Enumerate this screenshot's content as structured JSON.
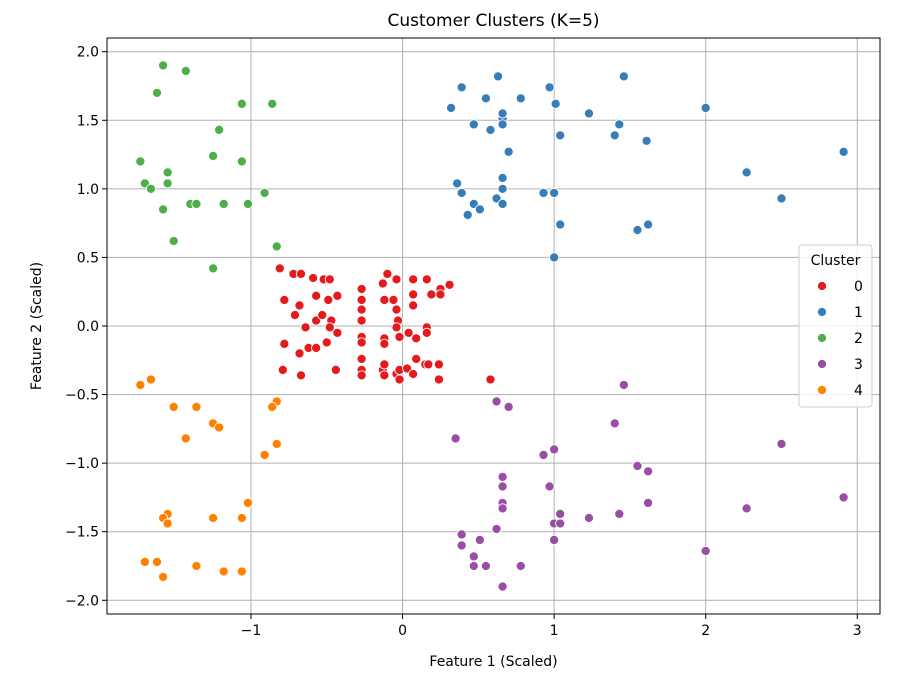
{
  "chart_data": {
    "type": "scatter",
    "title": "Customer Clusters (K=5)",
    "xlabel": "Feature 1 (Scaled)",
    "ylabel": "Feature 2 (Scaled)",
    "xlim": [
      -1.95,
      3.15
    ],
    "ylim": [
      -2.1,
      2.1
    ],
    "xticks": [
      -1,
      0,
      1,
      2,
      3
    ],
    "xtick_labels": [
      "−1",
      "0",
      "1",
      "2",
      "3"
    ],
    "yticks": [
      -2.0,
      -1.5,
      -1.0,
      -0.5,
      0.0,
      0.5,
      1.0,
      1.5,
      2.0
    ],
    "ytick_labels": [
      "−2.0",
      "−1.5",
      "−1.0",
      "−0.5",
      "0.0",
      "0.5",
      "1.0",
      "1.5",
      "2.0"
    ],
    "grid": true,
    "legend": {
      "title": "Cluster",
      "placement": "center-right"
    },
    "series": [
      {
        "name": "0",
        "color": "#e41a1c",
        "points": [
          [
            -0.81,
            0.42
          ],
          [
            -0.72,
            0.38
          ],
          [
            -0.67,
            0.38
          ],
          [
            -0.59,
            0.35
          ],
          [
            -0.52,
            0.34
          ],
          [
            -0.48,
            0.34
          ],
          [
            -0.78,
            0.19
          ],
          [
            -0.68,
            0.15
          ],
          [
            -0.57,
            0.22
          ],
          [
            -0.49,
            0.19
          ],
          [
            -0.43,
            0.22
          ],
          [
            -0.27,
            0.27
          ],
          [
            -0.27,
            0.19
          ],
          [
            -0.13,
            0.31
          ],
          [
            -0.1,
            0.38
          ],
          [
            -0.04,
            0.34
          ],
          [
            0.07,
            0.34
          ],
          [
            0.16,
            0.34
          ],
          [
            0.25,
            0.27
          ],
          [
            0.31,
            0.3
          ],
          [
            -0.71,
            0.08
          ],
          [
            -0.64,
            -0.01
          ],
          [
            -0.57,
            0.04
          ],
          [
            -0.53,
            0.08
          ],
          [
            -0.47,
            0.04
          ],
          [
            -0.43,
            -0.05
          ],
          [
            -0.27,
            0.12
          ],
          [
            -0.27,
            0.04
          ],
          [
            -0.12,
            0.19
          ],
          [
            -0.06,
            0.19
          ],
          [
            -0.04,
            0.12
          ],
          [
            -0.03,
            0.04
          ],
          [
            0.07,
            0.23
          ],
          [
            0.07,
            0.15
          ],
          [
            0.19,
            0.23
          ],
          [
            0.25,
            0.23
          ],
          [
            -0.78,
            -0.13
          ],
          [
            -0.68,
            -0.2
          ],
          [
            -0.62,
            -0.16
          ],
          [
            -0.57,
            -0.16
          ],
          [
            -0.5,
            -0.12
          ],
          [
            -0.48,
            -0.01
          ],
          [
            -0.27,
            -0.08
          ],
          [
            -0.27,
            -0.12
          ],
          [
            -0.27,
            -0.24
          ],
          [
            -0.12,
            -0.09
          ],
          [
            -0.12,
            -0.13
          ],
          [
            -0.04,
            -0.01
          ],
          [
            -0.02,
            -0.08
          ],
          [
            0.04,
            -0.05
          ],
          [
            0.09,
            -0.09
          ],
          [
            0.16,
            -0.01
          ],
          [
            0.16,
            -0.05
          ],
          [
            -0.79,
            -0.32
          ],
          [
            -0.67,
            -0.36
          ],
          [
            -0.44,
            -0.32
          ],
          [
            -0.27,
            -0.32
          ],
          [
            -0.27,
            -0.36
          ],
          [
            -0.13,
            -0.32
          ],
          [
            -0.12,
            -0.28
          ],
          [
            -0.04,
            -0.35
          ],
          [
            -0.02,
            -0.32
          ],
          [
            0.03,
            -0.31
          ],
          [
            0.07,
            -0.35
          ],
          [
            0.09,
            -0.24
          ],
          [
            0.15,
            -0.28
          ],
          [
            0.17,
            -0.28
          ],
          [
            0.24,
            -0.28
          ],
          [
            -0.12,
            -0.36
          ],
          [
            -0.02,
            -0.39
          ],
          [
            0.24,
            -0.39
          ],
          [
            0.58,
            -0.39
          ]
        ]
      },
      {
        "name": "1",
        "color": "#377eb8",
        "points": [
          [
            0.32,
            1.59
          ],
          [
            0.39,
            1.74
          ],
          [
            0.55,
            1.66
          ],
          [
            0.63,
            1.82
          ],
          [
            0.78,
            1.66
          ],
          [
            0.97,
            1.74
          ],
          [
            1.01,
            1.62
          ],
          [
            1.46,
            1.82
          ],
          [
            2.0,
            1.59
          ],
          [
            0.47,
            1.47
          ],
          [
            0.58,
            1.43
          ],
          [
            0.66,
            1.51
          ],
          [
            0.66,
            1.47
          ],
          [
            0.66,
            1.55
          ],
          [
            1.23,
            1.55
          ],
          [
            1.04,
            1.39
          ],
          [
            1.4,
            1.39
          ],
          [
            1.43,
            1.47
          ],
          [
            1.61,
            1.35
          ],
          [
            0.7,
            1.27
          ],
          [
            2.91,
            1.27
          ],
          [
            2.27,
            1.12
          ],
          [
            0.66,
            1.08
          ],
          [
            0.66,
            1.0
          ],
          [
            0.36,
            1.04
          ],
          [
            0.39,
            0.97
          ],
          [
            0.62,
            0.93
          ],
          [
            0.47,
            0.89
          ],
          [
            0.66,
            0.89
          ],
          [
            0.51,
            0.85
          ],
          [
            0.43,
            0.81
          ],
          [
            0.93,
            0.97
          ],
          [
            1.0,
            0.97
          ],
          [
            2.5,
            0.93
          ],
          [
            1.04,
            0.74
          ],
          [
            1.55,
            0.7
          ],
          [
            1.62,
            0.74
          ],
          [
            1.0,
            0.5
          ]
        ]
      },
      {
        "name": "2",
        "color": "#4daf4a",
        "points": [
          [
            -1.58,
            1.9
          ],
          [
            -1.43,
            1.86
          ],
          [
            -1.62,
            1.7
          ],
          [
            -1.06,
            1.62
          ],
          [
            -0.86,
            1.62
          ],
          [
            -1.21,
            1.43
          ],
          [
            -1.25,
            1.24
          ],
          [
            -1.06,
            1.2
          ],
          [
            -1.73,
            1.2
          ],
          [
            -1.55,
            1.12
          ],
          [
            -1.55,
            1.04
          ],
          [
            -1.7,
            1.04
          ],
          [
            -1.66,
            1.0
          ],
          [
            -0.91,
            0.97
          ],
          [
            -1.4,
            0.89
          ],
          [
            -1.36,
            0.89
          ],
          [
            -1.18,
            0.89
          ],
          [
            -1.02,
            0.89
          ],
          [
            -1.58,
            0.85
          ],
          [
            -1.51,
            0.62
          ],
          [
            -0.83,
            0.58
          ],
          [
            -1.25,
            0.42
          ]
        ]
      },
      {
        "name": "3",
        "color": "#984ea3",
        "points": [
          [
            1.46,
            -0.43
          ],
          [
            0.62,
            -0.55
          ],
          [
            0.7,
            -0.59
          ],
          [
            1.4,
            -0.71
          ],
          [
            0.35,
            -0.82
          ],
          [
            1.0,
            -0.9
          ],
          [
            0.93,
            -0.94
          ],
          [
            2.5,
            -0.86
          ],
          [
            1.55,
            -1.02
          ],
          [
            1.62,
            -1.06
          ],
          [
            0.66,
            -1.1
          ],
          [
            0.66,
            -1.17
          ],
          [
            0.97,
            -1.17
          ],
          [
            2.91,
            -1.25
          ],
          [
            0.66,
            -1.29
          ],
          [
            1.62,
            -1.29
          ],
          [
            0.66,
            -1.33
          ],
          [
            2.27,
            -1.33
          ],
          [
            1.04,
            -1.37
          ],
          [
            1.43,
            -1.37
          ],
          [
            1.23,
            -1.4
          ],
          [
            1.0,
            -1.44
          ],
          [
            1.04,
            -1.44
          ],
          [
            0.62,
            -1.48
          ],
          [
            0.39,
            -1.52
          ],
          [
            0.51,
            -1.56
          ],
          [
            1.0,
            -1.56
          ],
          [
            0.39,
            -1.6
          ],
          [
            2.0,
            -1.64
          ],
          [
            0.47,
            -1.68
          ],
          [
            0.47,
            -1.75
          ],
          [
            0.55,
            -1.75
          ],
          [
            0.78,
            -1.75
          ],
          [
            0.66,
            -1.9
          ]
        ]
      },
      {
        "name": "4",
        "color": "#ff7f00",
        "points": [
          [
            -1.66,
            -0.39
          ],
          [
            -1.73,
            -0.43
          ],
          [
            -0.83,
            -0.55
          ],
          [
            -0.86,
            -0.59
          ],
          [
            -1.51,
            -0.59
          ],
          [
            -1.36,
            -0.59
          ],
          [
            -1.43,
            -0.82
          ],
          [
            -1.25,
            -0.71
          ],
          [
            -1.21,
            -0.74
          ],
          [
            -0.83,
            -0.86
          ],
          [
            -0.91,
            -0.94
          ],
          [
            -1.02,
            -1.29
          ],
          [
            -1.55,
            -1.37
          ],
          [
            -1.58,
            -1.4
          ],
          [
            -1.25,
            -1.4
          ],
          [
            -1.06,
            -1.4
          ],
          [
            -1.55,
            -1.44
          ],
          [
            -1.7,
            -1.72
          ],
          [
            -1.62,
            -1.72
          ],
          [
            -1.36,
            -1.75
          ],
          [
            -1.18,
            -1.79
          ],
          [
            -1.06,
            -1.79
          ],
          [
            -1.58,
            -1.83
          ]
        ]
      }
    ]
  }
}
